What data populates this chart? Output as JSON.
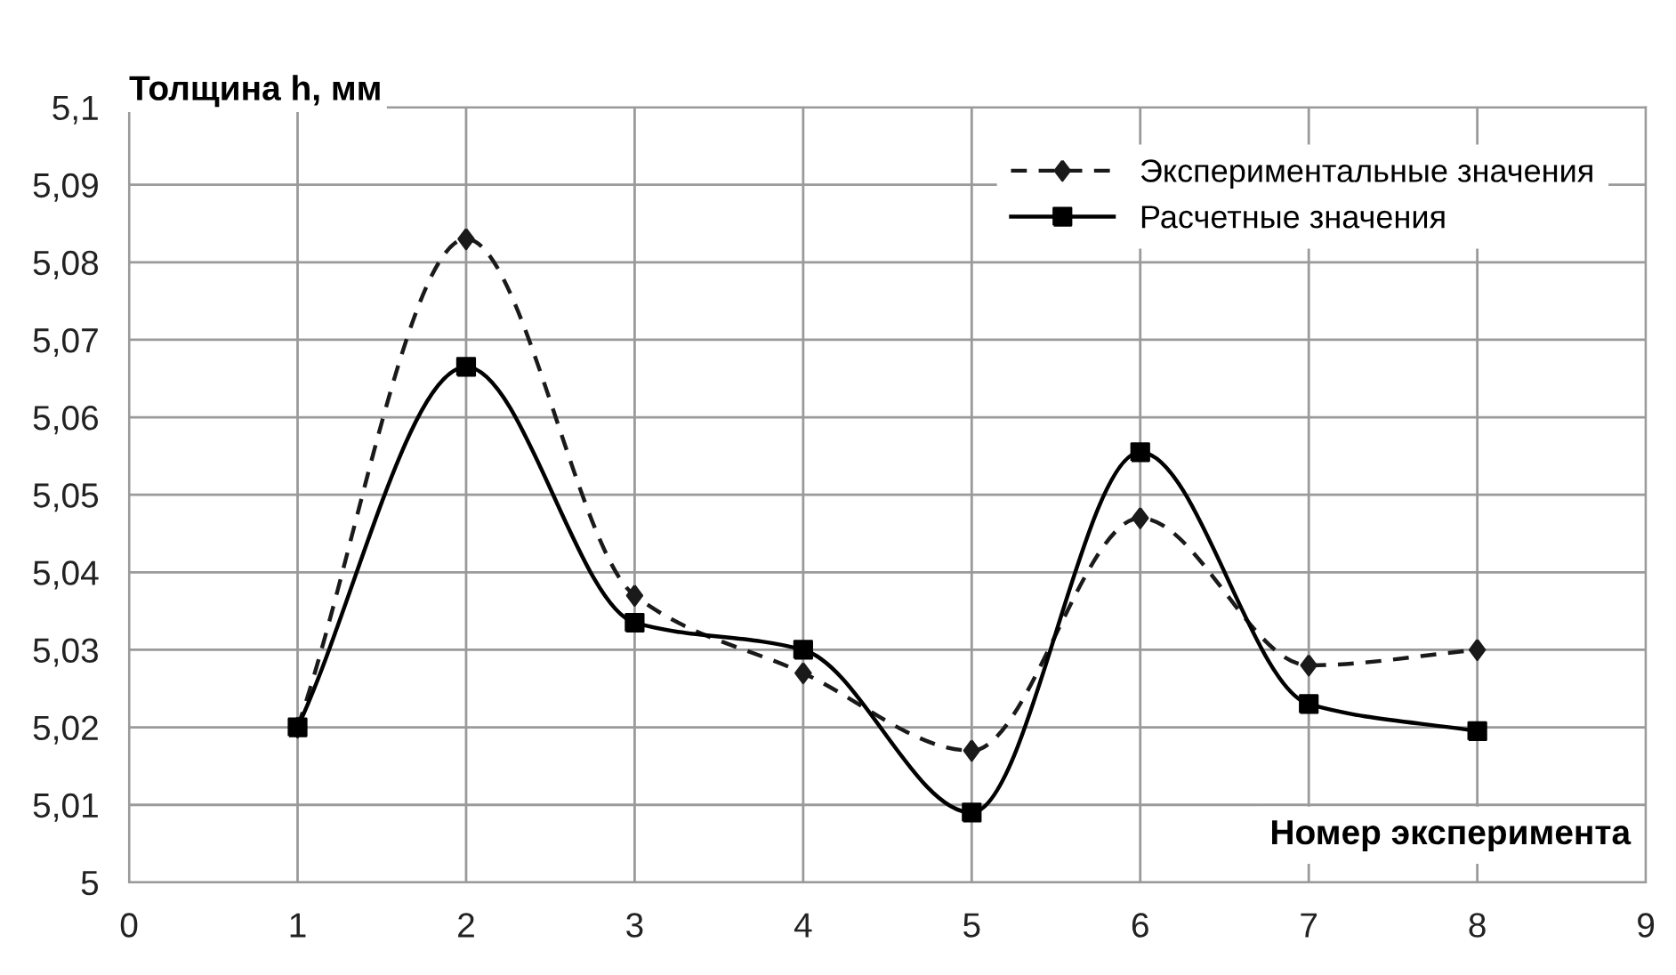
{
  "chart_data": {
    "type": "line",
    "ylabel": "Толщина h, мм",
    "xlabel": "Номер эксперимента",
    "x": [
      1,
      2,
      3,
      4,
      5,
      6,
      7,
      8
    ],
    "series": [
      {
        "name": "Экспериментальные значения",
        "color": "#1a1a1a",
        "marker": "diamond",
        "line_style": "dashed",
        "values": [
          5.02,
          5.083,
          5.037,
          5.027,
          5.017,
          5.047,
          5.028,
          5.03
        ]
      },
      {
        "name": "Расчетные значения",
        "color": "#000000",
        "marker": "square",
        "line_style": "solid",
        "values": [
          5.02,
          5.0665,
          5.0335,
          5.03,
          5.009,
          5.0555,
          5.023,
          5.0195
        ]
      }
    ],
    "xlim": [
      0,
      9
    ],
    "xticks": [
      0,
      1,
      2,
      3,
      4,
      5,
      6,
      7,
      8,
      9
    ],
    "ylim": [
      5,
      5.1
    ],
    "yticks": [
      5,
      {
        "value": 5.01,
        "label": "5,01"
      },
      {
        "value": 5.02,
        "label": "5,02"
      },
      {
        "value": 5.03,
        "label": "5,03"
      },
      {
        "value": 5.04,
        "label": "5,04"
      },
      {
        "value": 5.05,
        "label": "5,05"
      },
      {
        "value": 5.06,
        "label": "5,06"
      },
      {
        "value": 5.07,
        "label": "5,07"
      },
      {
        "value": 5.08,
        "label": "5,08"
      },
      {
        "value": 5.09,
        "label": "5,09"
      },
      {
        "value": 5.1,
        "label": "5,1"
      }
    ],
    "grid": true,
    "legend": "top right"
  }
}
